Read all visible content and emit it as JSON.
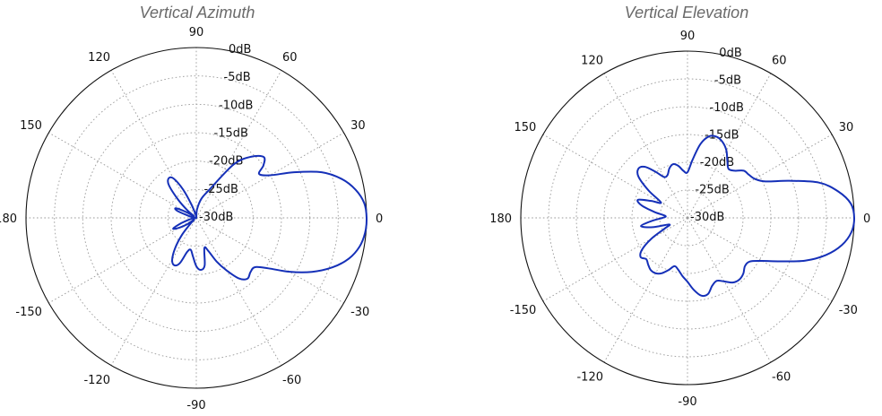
{
  "chart_data": [
    {
      "type": "polar-line",
      "title": "Vertical Azimuth",
      "angle_unit": "degrees",
      "angle_tick_labels": [
        "0",
        "30",
        "60",
        "90",
        "120",
        "150",
        "180",
        "-150",
        "-120",
        "-90",
        "-60",
        "-30"
      ],
      "radial_tick_labels": [
        "0dB",
        "-5dB",
        "-10dB",
        "-15dB",
        "-20dB",
        "-25dB",
        "-30dB"
      ],
      "rlim_db": [
        -30,
        0
      ],
      "grid": true,
      "series": [
        {
          "color": "#1530b8",
          "angles": [
            0,
            5,
            10,
            15,
            20,
            25,
            30,
            35,
            38,
            42,
            48,
            55,
            65,
            75,
            85,
            92,
            100,
            110,
            115,
            120,
            125,
            130,
            135,
            140,
            145,
            150,
            155,
            160,
            165,
            170,
            175,
            180,
            -175,
            -170,
            -165,
            -160,
            -155,
            -150,
            -145,
            -140,
            -135,
            -130,
            -125,
            -120,
            -115,
            -110,
            -105,
            -100,
            -95,
            -90,
            -85,
            -80,
            -75,
            -70,
            -65,
            -60,
            -55,
            -50,
            -45,
            -40,
            -35,
            -30,
            -25,
            -20,
            -15,
            -10,
            -5
          ],
          "gain_db": [
            0,
            -0.3,
            -1.5,
            -3.5,
            -6.5,
            -11,
            -15,
            -16.5,
            -15,
            -14,
            -15.5,
            -18.5,
            -24.5,
            -26.5,
            -28.5,
            -30,
            -29.5,
            -27.5,
            -24.5,
            -22,
            -21.5,
            -22.5,
            -25.5,
            -28,
            -29.5,
            -28,
            -26,
            -26.5,
            -28.5,
            -29.2,
            -29.6,
            -30,
            -29.6,
            -29.2,
            -28.5,
            -27,
            -25.5,
            -26.5,
            -28,
            -29.5,
            -28.5,
            -26,
            -23.5,
            -21.5,
            -20.8,
            -21.5,
            -23.8,
            -24.3,
            -23.2,
            -21.5,
            -20.8,
            -21.5,
            -24.5,
            -23.8,
            -21.5,
            -19.3,
            -17,
            -16,
            -16.5,
            -16.5,
            -14.5,
            -11,
            -7.5,
            -4.5,
            -2.2,
            -0.8,
            -0.15
          ]
        }
      ]
    },
    {
      "type": "polar-line",
      "title": "Vertical Elevation",
      "angle_unit": "degrees",
      "angle_tick_labels": [
        "0",
        "30",
        "60",
        "90",
        "120",
        "150",
        "180",
        "-150",
        "-120",
        "-90",
        "-60",
        "-30"
      ],
      "radial_tick_labels": [
        "0dB",
        "-5dB",
        "-10dB",
        "-15dB",
        "-20dB",
        "-25dB",
        "-30dB"
      ],
      "rlim_db": [
        -30,
        0
      ],
      "grid": true,
      "series": [
        {
          "color": "#1530b8",
          "angles": [
            0,
            5,
            10,
            15,
            20,
            25,
            30,
            35,
            40,
            45,
            50,
            55,
            60,
            65,
            70,
            75,
            80,
            85,
            90,
            95,
            100,
            105,
            110,
            115,
            120,
            125,
            130,
            135,
            140,
            145,
            150,
            155,
            160,
            165,
            170,
            175,
            180,
            -175,
            -170,
            -165,
            -160,
            -155,
            -150,
            -145,
            -140,
            -135,
            -130,
            -125,
            -120,
            -115,
            -110,
            -105,
            -100,
            -95,
            -90,
            -85,
            -80,
            -75,
            -70,
            -65,
            -60,
            -55,
            -50,
            -45,
            -40,
            -35,
            -30,
            -25,
            -20,
            -15,
            -10,
            -5
          ],
          "gain_db": [
            0,
            -0.5,
            -2.5,
            -5.5,
            -10.5,
            -14.5,
            -16,
            -16.5,
            -16.8,
            -18,
            -18.5,
            -17.5,
            -16,
            -15,
            -14.5,
            -14.8,
            -16.5,
            -19.5,
            -21.8,
            -21.5,
            -20.5,
            -20,
            -20.5,
            -21.5,
            -21.5,
            -19.8,
            -18,
            -17.5,
            -18.5,
            -21.5,
            -24.5,
            -22.8,
            -20.5,
            -21.5,
            -24,
            -26,
            -25.5,
            -23.5,
            -21.5,
            -23.5,
            -26.5,
            -25.5,
            -22.5,
            -20,
            -19,
            -19.5,
            -19,
            -18.5,
            -18.5,
            -19,
            -20,
            -21,
            -20.5,
            -19.5,
            -18.5,
            -17,
            -15.8,
            -15.8,
            -17,
            -17.5,
            -16.8,
            -15.8,
            -15.5,
            -15.8,
            -16.5,
            -16.3,
            -14.5,
            -11.5,
            -7.5,
            -4.2,
            -1.8,
            -0.4
          ]
        }
      ]
    }
  ]
}
